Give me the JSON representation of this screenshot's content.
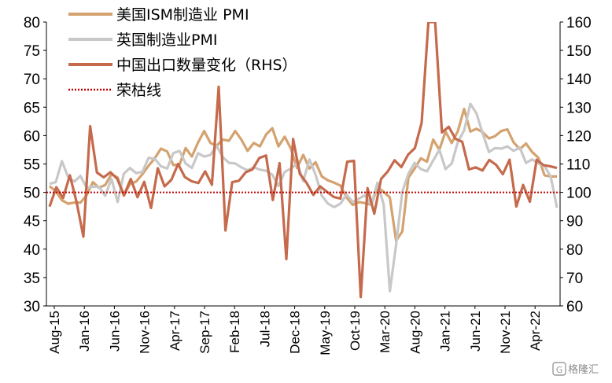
{
  "chart_data": {
    "type": "line",
    "title": "",
    "xlabel": "",
    "ylabel": "",
    "ylim": [
      30,
      80
    ],
    "y2lim": [
      60,
      160
    ],
    "yticks": [
      30,
      35,
      40,
      45,
      50,
      55,
      60,
      65,
      70,
      75,
      80
    ],
    "y2ticks": [
      60,
      70,
      80,
      90,
      100,
      110,
      120,
      130,
      140,
      150,
      160
    ],
    "x_tick_labels": [
      "Aug-15",
      "Jan-16",
      "Jun-16",
      "Nov-16",
      "Apr-17",
      "Sep-17",
      "Feb-18",
      "Jul-18",
      "Dec-18",
      "May-19",
      "Oct-19",
      "Mar-20",
      "Aug-20",
      "Jan-21",
      "Jun-21",
      "Nov-21",
      "Apr-22"
    ],
    "legend_position": "top-left",
    "grid": false,
    "series": [
      {
        "name": "美国ISM制造业 PMI",
        "axis": "left",
        "color": "#d4a26f",
        "values": [
          51.1,
          50.2,
          48.6,
          48.0,
          48.2,
          48.2,
          49.5,
          51.8,
          50.8,
          51.3,
          53.2,
          52.6,
          49.4,
          51.5,
          51.9,
          53.2,
          54.7,
          56.0,
          57.7,
          57.2,
          54.8,
          54.9,
          57.8,
          56.3,
          58.8,
          60.8,
          58.7,
          58.2,
          59.3,
          59.1,
          60.8,
          59.3,
          57.3,
          58.7,
          58.1,
          60.2,
          61.3,
          58.1,
          59.8,
          57.7,
          54.3,
          56.6,
          54.2,
          55.3,
          52.8,
          52.1,
          51.7,
          51.2,
          49.1,
          47.8,
          48.3,
          48.1,
          47.8,
          50.9,
          50.1,
          49.1,
          41.5,
          43.1,
          52.6,
          54.2,
          56.0,
          55.4,
          59.3,
          57.5,
          60.7,
          58.7,
          60.8,
          64.7,
          60.7,
          61.2,
          60.6,
          59.5,
          59.9,
          60.8,
          61.1,
          58.8,
          57.6,
          58.6,
          57.1,
          56.1,
          53.0,
          52.8,
          52.8
        ]
      },
      {
        "name": "英国制造业PMI",
        "axis": "left",
        "color": "#c8c8c8",
        "values": [
          51.5,
          51.8,
          55.5,
          52.7,
          51.9,
          52.9,
          50.8,
          51.0,
          51.0,
          49.4,
          52.4,
          48.3,
          53.3,
          54.3,
          53.4,
          53.6,
          56.1,
          55.9,
          54.6,
          54.2,
          56.9,
          57.3,
          55.1,
          54.3,
          56.9,
          56.3,
          56.6,
          58.2,
          56.2,
          55.2,
          55.1,
          54.4,
          53.9,
          54.4,
          54.0,
          53.8,
          53.1,
          51.1,
          53.6,
          54.2,
          55.1,
          52.0,
          55.8,
          53.1,
          49.4,
          48.0,
          47.4,
          48.0,
          49.6,
          48.3,
          48.9,
          49.5,
          47.8,
          51.7,
          47.8,
          32.6,
          40.7,
          50.1,
          53.3,
          55.2,
          54.1,
          53.7,
          55.6,
          57.5,
          54.1,
          55.1,
          58.9,
          60.9,
          65.6,
          63.9,
          60.4,
          57.1,
          57.8,
          57.7,
          58.1,
          57.3,
          57.9,
          55.2,
          55.8,
          55.1,
          54.6,
          52.8,
          47.3
        ]
      },
      {
        "name": "中国出口数量变化（RHS）",
        "axis": "right",
        "color": "#c56a4c",
        "values": [
          95.0,
          101.8,
          98.0,
          106.0,
          96.5,
          84.4,
          123.3,
          107.0,
          105.3,
          107.1,
          104.8,
          99.0,
          104.7,
          98.3,
          103.7,
          94.5,
          108.5,
          102.1,
          104.4,
          110.0,
          105.4,
          103.9,
          103.3,
          107.4,
          102.7,
          137.2,
          86.6,
          103.6,
          104.1,
          107.1,
          108.1,
          112.1,
          113.0,
          97.3,
          110.3,
          76.5,
          118.8,
          106.5,
          103.3,
          99.1,
          102.1,
          100.2,
          98.4,
          97.8,
          110.8,
          111.1,
          63.1,
          101.5,
          92.5,
          104.7,
          107.4,
          111.3,
          108.9,
          113.3,
          115.6,
          124.5,
          160.0,
          160.0,
          121.1,
          123.1,
          118.9,
          117.8,
          108.1,
          108.8,
          107.7,
          111.4,
          109.7,
          106.4,
          111.5,
          95.0,
          102.6,
          96.7,
          111.5,
          109.6,
          109.2,
          108.6
        ]
      }
    ],
    "reference_lines": [
      {
        "name": "荣枯线",
        "axis": "left",
        "value": 50,
        "style": "dotted",
        "color": "#c00000"
      }
    ]
  },
  "watermark": "格隆汇"
}
